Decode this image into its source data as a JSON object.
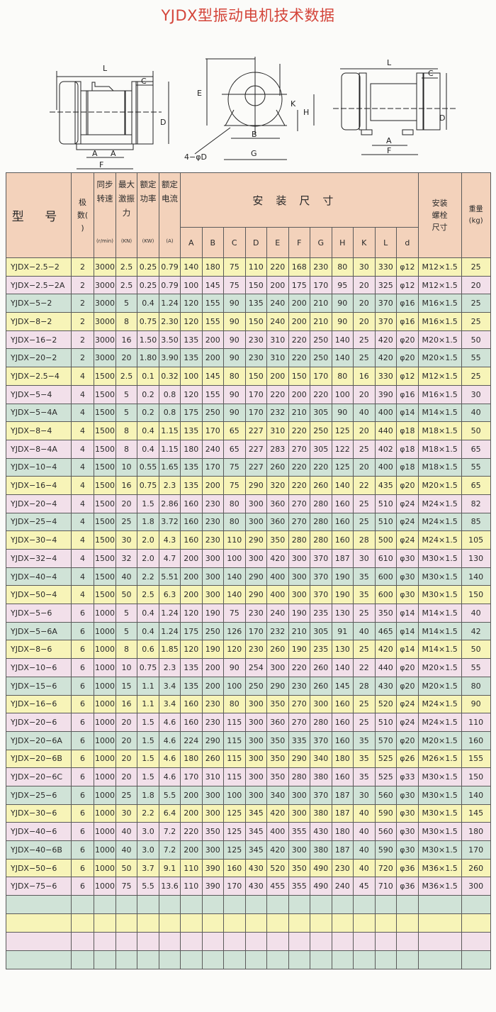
{
  "title": "YJDX型振动电机技术数据",
  "diagrams": {
    "front_labels": {
      "L": "L",
      "C": "C",
      "D": "D",
      "A1": "A",
      "A2": "A",
      "F": "F"
    },
    "side_labels": {
      "E": "E",
      "K": "K",
      "H": "H",
      "B": "B",
      "G": "G",
      "hole": "4−φD"
    },
    "alt_labels": {
      "L": "L",
      "C": "C",
      "D": "D",
      "A": "A",
      "F": "F"
    }
  },
  "table": {
    "headers": {
      "model": "型 号",
      "poles": "极数( )",
      "speed": "同步转速",
      "speed_unit": "(r/min)",
      "force": "最大激振力",
      "force_unit": "(KN)",
      "power": "额定功率",
      "power_unit": "(KW)",
      "current": "额定电流",
      "current_unit": "(A)",
      "dims_group": "安装尺寸",
      "dims": [
        "A",
        "B",
        "C",
        "D",
        "E",
        "F",
        "G",
        "H",
        "K",
        "L",
        "d"
      ],
      "bolt": "安装螺栓尺寸",
      "weight": "重量(kg)"
    },
    "row_colors": [
      "#f7f4b8",
      "#f2e0ea",
      "#d0e3d7"
    ],
    "rows": [
      [
        "YJDX−2.5−2",
        "2",
        "3000",
        "2.5",
        "0.25",
        "0.79",
        "140",
        "180",
        "75",
        "110",
        "220",
        "168",
        "230",
        "80",
        "30",
        "330",
        "φ12",
        "M12×1.5",
        "25"
      ],
      [
        "YJDX−2.5−2A",
        "2",
        "3000",
        "2.5",
        "0.25",
        "0.79",
        "100",
        "145",
        "75",
        "150",
        "200",
        "175",
        "170",
        "95",
        "20",
        "325",
        "φ12",
        "M12×1.5",
        "20"
      ],
      [
        "YJDX−5−2",
        "2",
        "3000",
        "5",
        "0.4",
        "1.24",
        "120",
        "155",
        "90",
        "135",
        "240",
        "200",
        "210",
        "90",
        "20",
        "370",
        "φ16",
        "M16×1.5",
        "25"
      ],
      [
        "YJDX−8−2",
        "2",
        "3000",
        "8",
        "0.75",
        "2.30",
        "120",
        "155",
        "90",
        "150",
        "240",
        "200",
        "210",
        "90",
        "20",
        "370",
        "φ16",
        "M16×1.5",
        "25"
      ],
      [
        "YJDX−16−2",
        "2",
        "3000",
        "16",
        "1.50",
        "3.50",
        "135",
        "200",
        "90",
        "230",
        "310",
        "220",
        "250",
        "140",
        "25",
        "420",
        "φ20",
        "M20×1.5",
        "50"
      ],
      [
        "YJDX−20−2",
        "2",
        "3000",
        "20",
        "1.80",
        "3.90",
        "135",
        "200",
        "90",
        "230",
        "310",
        "220",
        "250",
        "140",
        "25",
        "420",
        "φ20",
        "M20×1.5",
        "55"
      ],
      [
        "YJDX−2.5−4",
        "4",
        "1500",
        "2.5",
        "0.1",
        "0.32",
        "100",
        "145",
        "80",
        "150",
        "200",
        "150",
        "170",
        "80",
        "16",
        "330",
        "φ12",
        "M12×1.5",
        "25"
      ],
      [
        "YJDX−5−4",
        "4",
        "1500",
        "5",
        "0.2",
        "0.8",
        "120",
        "155",
        "90",
        "170",
        "220",
        "200",
        "220",
        "100",
        "20",
        "390",
        "φ16",
        "M16×1.5",
        "30"
      ],
      [
        "YJDX−5−4A",
        "4",
        "1500",
        "5",
        "0.2",
        "0.8",
        "175",
        "250",
        "90",
        "170",
        "232",
        "210",
        "305",
        "90",
        "40",
        "400",
        "φ14",
        "M14×1.5",
        "40"
      ],
      [
        "YJDX−8−4",
        "4",
        "1500",
        "8",
        "0.4",
        "1.15",
        "135",
        "170",
        "65",
        "227",
        "310",
        "220",
        "250",
        "125",
        "20",
        "440",
        "φ18",
        "M18×1.5",
        "50"
      ],
      [
        "YJDX−8−4A",
        "4",
        "1500",
        "8",
        "0.4",
        "1.15",
        "180",
        "240",
        "65",
        "227",
        "283",
        "270",
        "305",
        "122",
        "25",
        "402",
        "φ18",
        "M18×1.5",
        "65"
      ],
      [
        "YJDX−10−4",
        "4",
        "1500",
        "10",
        "0.55",
        "1.65",
        "135",
        "170",
        "75",
        "227",
        "260",
        "220",
        "220",
        "125",
        "20",
        "400",
        "φ18",
        "M18×1.5",
        "55"
      ],
      [
        "YJDX−16−4",
        "4",
        "1500",
        "16",
        "0.75",
        "2.3",
        "135",
        "200",
        "75",
        "290",
        "320",
        "220",
        "260",
        "140",
        "22",
        "435",
        "φ20",
        "M20×1.5",
        "65"
      ],
      [
        "YJDX−20−4",
        "4",
        "1500",
        "20",
        "1.5",
        "2.86",
        "160",
        "230",
        "80",
        "300",
        "360",
        "270",
        "280",
        "160",
        "25",
        "510",
        "φ24",
        "M24×1.5",
        "82"
      ],
      [
        "YJDX−25−4",
        "4",
        "1500",
        "25",
        "1.8",
        "3.72",
        "160",
        "230",
        "80",
        "300",
        "360",
        "270",
        "280",
        "160",
        "25",
        "510",
        "φ24",
        "M24×1.5",
        "85"
      ],
      [
        "YJDX−30−4",
        "4",
        "1500",
        "30",
        "2.0",
        "4.3",
        "160",
        "230",
        "110",
        "290",
        "350",
        "280",
        "280",
        "160",
        "28",
        "500",
        "φ24",
        "M24×1.5",
        "105"
      ],
      [
        "YJDX−32−4",
        "4",
        "1500",
        "32",
        "2.0",
        "4.7",
        "200",
        "300",
        "100",
        "300",
        "420",
        "300",
        "370",
        "187",
        "30",
        "610",
        "φ30",
        "M30×1.5",
        "130"
      ],
      [
        "YJDX−40−4",
        "4",
        "1500",
        "40",
        "2.2",
        "5.51",
        "200",
        "300",
        "140",
        "290",
        "400",
        "300",
        "370",
        "190",
        "35",
        "600",
        "φ30",
        "M30×1.5",
        "140"
      ],
      [
        "YJDX−50−4",
        "4",
        "1500",
        "50",
        "2.5",
        "6.3",
        "200",
        "300",
        "140",
        "290",
        "400",
        "300",
        "370",
        "190",
        "35",
        "600",
        "φ30",
        "M30×1.5",
        "150"
      ],
      [
        "YJDX−5−6",
        "6",
        "1000",
        "5",
        "0.4",
        "1.24",
        "120",
        "190",
        "75",
        "230",
        "240",
        "190",
        "235",
        "130",
        "25",
        "350",
        "φ14",
        "M14×1.5",
        "40"
      ],
      [
        "YJDX−5−6A",
        "6",
        "1000",
        "5",
        "0.4",
        "1.24",
        "175",
        "250",
        "126",
        "170",
        "232",
        "210",
        "305",
        "91",
        "40",
        "465",
        "φ14",
        "M14×1.5",
        "42"
      ],
      [
        "YJDX−8−6",
        "6",
        "1000",
        "8",
        "0.6",
        "1.85",
        "120",
        "190",
        "120",
        "230",
        "260",
        "190",
        "235",
        "130",
        "25",
        "420",
        "φ14",
        "M14×1.5",
        "50"
      ],
      [
        "YJDX−10−6",
        "6",
        "1000",
        "10",
        "0.75",
        "2.3",
        "135",
        "200",
        "90",
        "254",
        "300",
        "220",
        "260",
        "140",
        "22",
        "440",
        "φ20",
        "M20×1.5",
        "55"
      ],
      [
        "YJDX−15−6",
        "6",
        "1000",
        "15",
        "1.1",
        "3.4",
        "135",
        "200",
        "100",
        "250",
        "290",
        "230",
        "260",
        "145",
        "28",
        "430",
        "φ20",
        "M20×1.5",
        "80"
      ],
      [
        "YJDX−16−6",
        "6",
        "1000",
        "16",
        "1.1",
        "3.4",
        "160",
        "230",
        "80",
        "300",
        "350",
        "270",
        "300",
        "160",
        "25",
        "520",
        "φ24",
        "M24×1.5",
        "90"
      ],
      [
        "YJDX−20−6",
        "6",
        "1000",
        "20",
        "1.5",
        "4.6",
        "160",
        "230",
        "115",
        "300",
        "360",
        "270",
        "280",
        "160",
        "25",
        "510",
        "φ24",
        "M24×1.5",
        "110"
      ],
      [
        "YJDX−20−6A",
        "6",
        "1000",
        "20",
        "1.5",
        "4.6",
        "224",
        "290",
        "115",
        "300",
        "350",
        "335",
        "370",
        "160",
        "35",
        "570",
        "φ20",
        "M20×1.5",
        "160"
      ],
      [
        "YJDX−20−6B",
        "6",
        "1000",
        "20",
        "1.5",
        "4.6",
        "180",
        "260",
        "115",
        "300",
        "350",
        "290",
        "340",
        "180",
        "35",
        "525",
        "φ26",
        "M26×1.5",
        "155"
      ],
      [
        "YJDX−20−6C",
        "6",
        "1000",
        "20",
        "1.5",
        "4.6",
        "170",
        "310",
        "115",
        "300",
        "350",
        "280",
        "380",
        "160",
        "35",
        "525",
        "φ33",
        "M30×1.5",
        "150"
      ],
      [
        "YJDX−25−6",
        "6",
        "1000",
        "25",
        "1.8",
        "5.5",
        "200",
        "300",
        "100",
        "300",
        "340",
        "300",
        "370",
        "187",
        "30",
        "560",
        "φ30",
        "M30×1.5",
        "140"
      ],
      [
        "YJDX−30−6",
        "6",
        "1000",
        "30",
        "2.2",
        "6.4",
        "200",
        "300",
        "125",
        "345",
        "420",
        "300",
        "380",
        "187",
        "40",
        "590",
        "φ30",
        "M30×1.5",
        "145"
      ],
      [
        "YJDX−40−6",
        "6",
        "1000",
        "40",
        "3.0",
        "7.2",
        "220",
        "350",
        "125",
        "345",
        "400",
        "355",
        "430",
        "180",
        "40",
        "560",
        "φ30",
        "M30×1.5",
        "180"
      ],
      [
        "YJDX−40−6B",
        "6",
        "1000",
        "40",
        "3.0",
        "7.2",
        "200",
        "300",
        "125",
        "345",
        "420",
        "300",
        "380",
        "187",
        "40",
        "590",
        "φ30",
        "M30×1.5",
        "170"
      ],
      [
        "YJDX−50−6",
        "6",
        "1000",
        "50",
        "3.7",
        "9.1",
        "110",
        "390",
        "160",
        "430",
        "520",
        "350",
        "490",
        "230",
        "40",
        "720",
        "φ36",
        "M36×1.5",
        "260"
      ],
      [
        "YJDX−75−6",
        "6",
        "1000",
        "75",
        "5.5",
        "13.6",
        "110",
        "390",
        "170",
        "430",
        "455",
        "355",
        "490",
        "240",
        "45",
        "710",
        "φ36",
        "M36×1.5",
        "300"
      ]
    ],
    "empty_rows": 4
  }
}
